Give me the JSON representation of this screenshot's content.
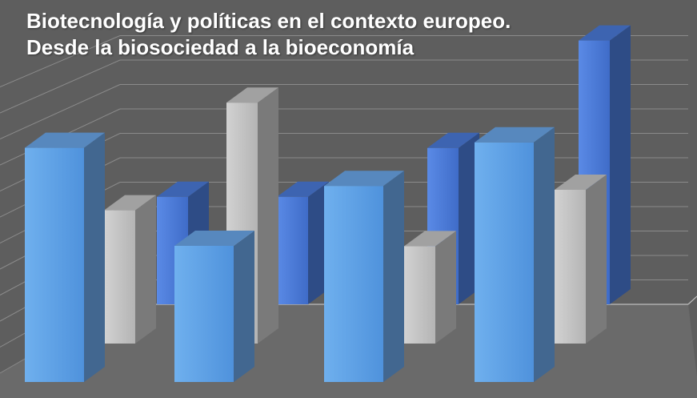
{
  "title": {
    "line1": "Biotecnología y políticas en el contexto europeo.",
    "line2": "Desde la biosociedad a la bioeconomía"
  },
  "colors": {
    "background": "#5e5e5e",
    "grid": "#9a9a9a",
    "floor": "#7a7a7a",
    "series_front": "#6aa6e8",
    "series_middle": "#c4c4c4",
    "series_back": "#4a7ad8"
  },
  "chart_data": {
    "type": "bar",
    "subtype": "3d-clustered-depth",
    "title": "Biotecnología y políticas en el contexto europeo. Desde la biosociedad a la bioeconomía",
    "categories": [
      "",
      "",
      "",
      ""
    ],
    "series": [
      {
        "values": [
          4.3,
          2.5,
          3.6,
          4.4
        ]
      },
      {
        "values": [
          2.6,
          4.7,
          1.9,
          3.0
        ]
      },
      {
        "values": [
          2.2,
          2.2,
          3.2,
          5.4
        ]
      }
    ],
    "ylim": [
      0,
      5.5
    ],
    "grid": true,
    "legend": "none"
  }
}
